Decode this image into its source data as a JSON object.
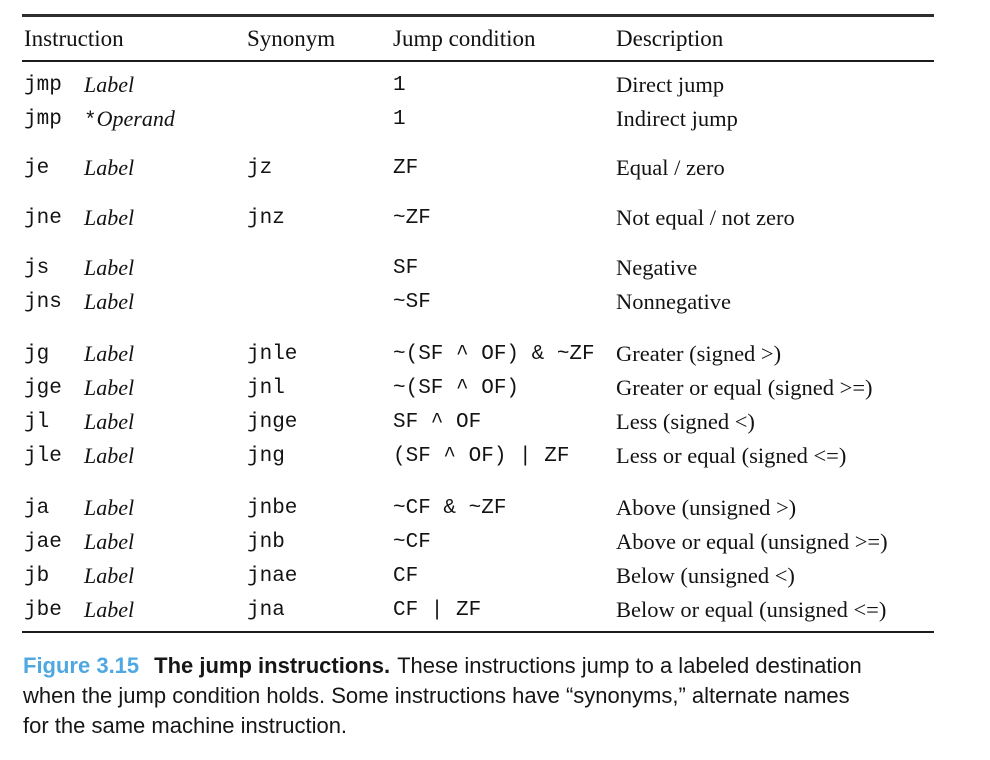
{
  "table": {
    "columns": [
      "Instruction",
      "Synonym",
      "Jump condition",
      "Description"
    ],
    "groups": [
      {
        "rows": [
          {
            "mnemonic": "jmp",
            "operand_prefix": "",
            "operand": "Label",
            "synonym": "",
            "condition": "1",
            "description": "Direct jump"
          },
          {
            "mnemonic": "jmp",
            "operand_prefix": "*",
            "operand": "Operand",
            "synonym": "",
            "condition": "1",
            "description": "Indirect jump"
          }
        ]
      },
      {
        "rows": [
          {
            "mnemonic": "je",
            "operand_prefix": "",
            "operand": "Label",
            "synonym": "jz",
            "condition": "ZF",
            "description": "Equal / zero"
          }
        ]
      },
      {
        "rows": [
          {
            "mnemonic": "jne",
            "operand_prefix": "",
            "operand": "Label",
            "synonym": "jnz",
            "condition": "~ZF",
            "description": "Not equal / not zero"
          }
        ]
      },
      {
        "rows": [
          {
            "mnemonic": "js",
            "operand_prefix": "",
            "operand": "Label",
            "synonym": "",
            "condition": "SF",
            "description": "Negative"
          },
          {
            "mnemonic": "jns",
            "operand_prefix": "",
            "operand": "Label",
            "synonym": "",
            "condition": "~SF",
            "description": "Nonnegative"
          }
        ]
      },
      {
        "rows": [
          {
            "mnemonic": "jg",
            "operand_prefix": "",
            "operand": "Label",
            "synonym": "jnle",
            "condition": "~(SF ^ OF) & ~ZF",
            "description": "Greater (signed >)"
          },
          {
            "mnemonic": "jge",
            "operand_prefix": "",
            "operand": "Label",
            "synonym": "jnl",
            "condition": "~(SF ^ OF)",
            "description": "Greater or equal (signed >=)"
          },
          {
            "mnemonic": "jl",
            "operand_prefix": "",
            "operand": "Label",
            "synonym": "jnge",
            "condition": "SF ^ OF",
            "description": "Less (signed <)"
          },
          {
            "mnemonic": "jle",
            "operand_prefix": "",
            "operand": "Label",
            "synonym": "jng",
            "condition": "(SF ^ OF) | ZF",
            "description": "Less or equal (signed <=)"
          }
        ]
      },
      {
        "rows": [
          {
            "mnemonic": "ja",
            "operand_prefix": "",
            "operand": "Label",
            "synonym": "jnbe",
            "condition": "~CF & ~ZF",
            "description": "Above (unsigned >)"
          },
          {
            "mnemonic": "jae",
            "operand_prefix": "",
            "operand": "Label",
            "synonym": "jnb",
            "condition": "~CF",
            "description": "Above or equal (unsigned >=)"
          },
          {
            "mnemonic": "jb",
            "operand_prefix": "",
            "operand": "Label",
            "synonym": "jnae",
            "condition": "CF",
            "description": "Below (unsigned <)"
          },
          {
            "mnemonic": "jbe",
            "operand_prefix": "",
            "operand": "Label",
            "synonym": "jna",
            "condition": "CF | ZF",
            "description": "Below or equal (unsigned <=)"
          }
        ]
      }
    ]
  },
  "caption": {
    "figure_label": "Figure 3.15",
    "title": "The jump instructions.",
    "line1_rest": "These instructions jump to a labeled destination",
    "line2": "when the jump condition holds. Some instructions have “synonyms,” alternate names",
    "line3": "for the same machine instruction.",
    "accent_color": "#4fa8e1"
  },
  "colors": {
    "background": "#ffffff",
    "text": "#131313",
    "rule": "#1c1c1c"
  }
}
